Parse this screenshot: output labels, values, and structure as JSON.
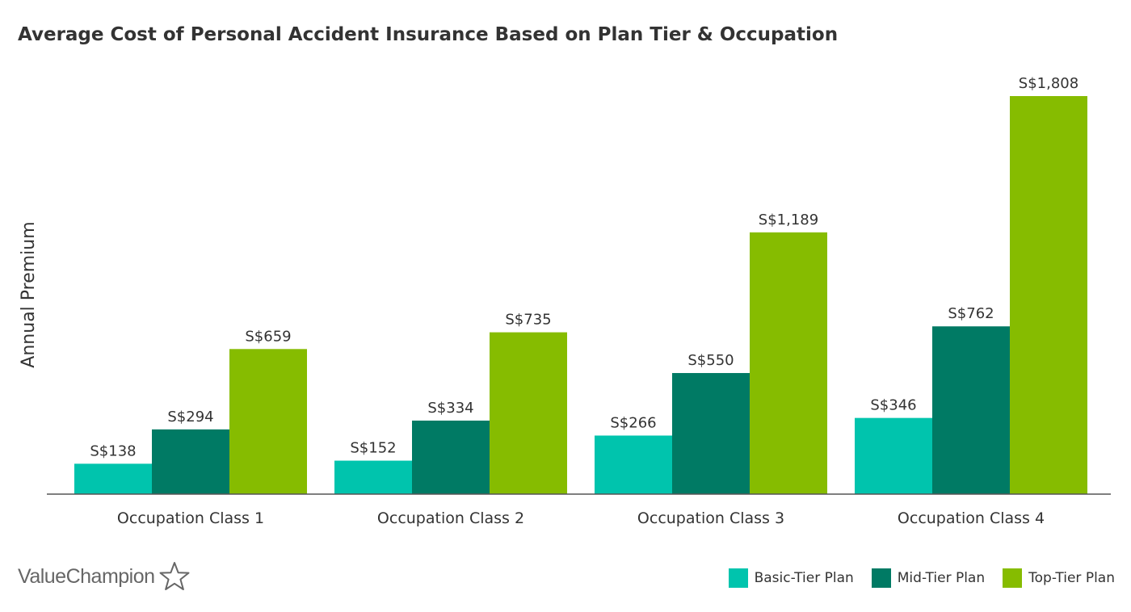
{
  "chart_data": {
    "type": "bar",
    "title": "Average Cost of Personal Accident Insurance Based on Plan Tier & Occupation",
    "xlabel": "",
    "ylabel": "Annual Premium",
    "ylim": [
      0,
      1900
    ],
    "grid": false,
    "legend_position": "bottom-right",
    "categories": [
      "Occupation Class 1",
      "Occupation Class 2",
      "Occupation Class 3",
      "Occupation Class 4"
    ],
    "series": [
      {
        "name": "Basic-Tier Plan",
        "color": "#00C4AD",
        "values": [
          138,
          152,
          266,
          346
        ],
        "labels": [
          "S$138",
          "S$152",
          "S$266",
          "S$346"
        ]
      },
      {
        "name": "Mid-Tier Plan",
        "color": "#007A64",
        "values": [
          294,
          334,
          550,
          762
        ],
        "labels": [
          "S$294",
          "S$334",
          "S$550",
          "S$762"
        ]
      },
      {
        "name": "Top-Tier Plan",
        "color": "#86BC00",
        "values": [
          659,
          735,
          1189,
          1808
        ],
        "labels": [
          "S$659",
          "S$735",
          "S$1,189",
          "S$1,808"
        ]
      }
    ]
  },
  "brand": {
    "name": "ValueChampion",
    "icon": "star-outline-icon",
    "color": "#666666"
  }
}
